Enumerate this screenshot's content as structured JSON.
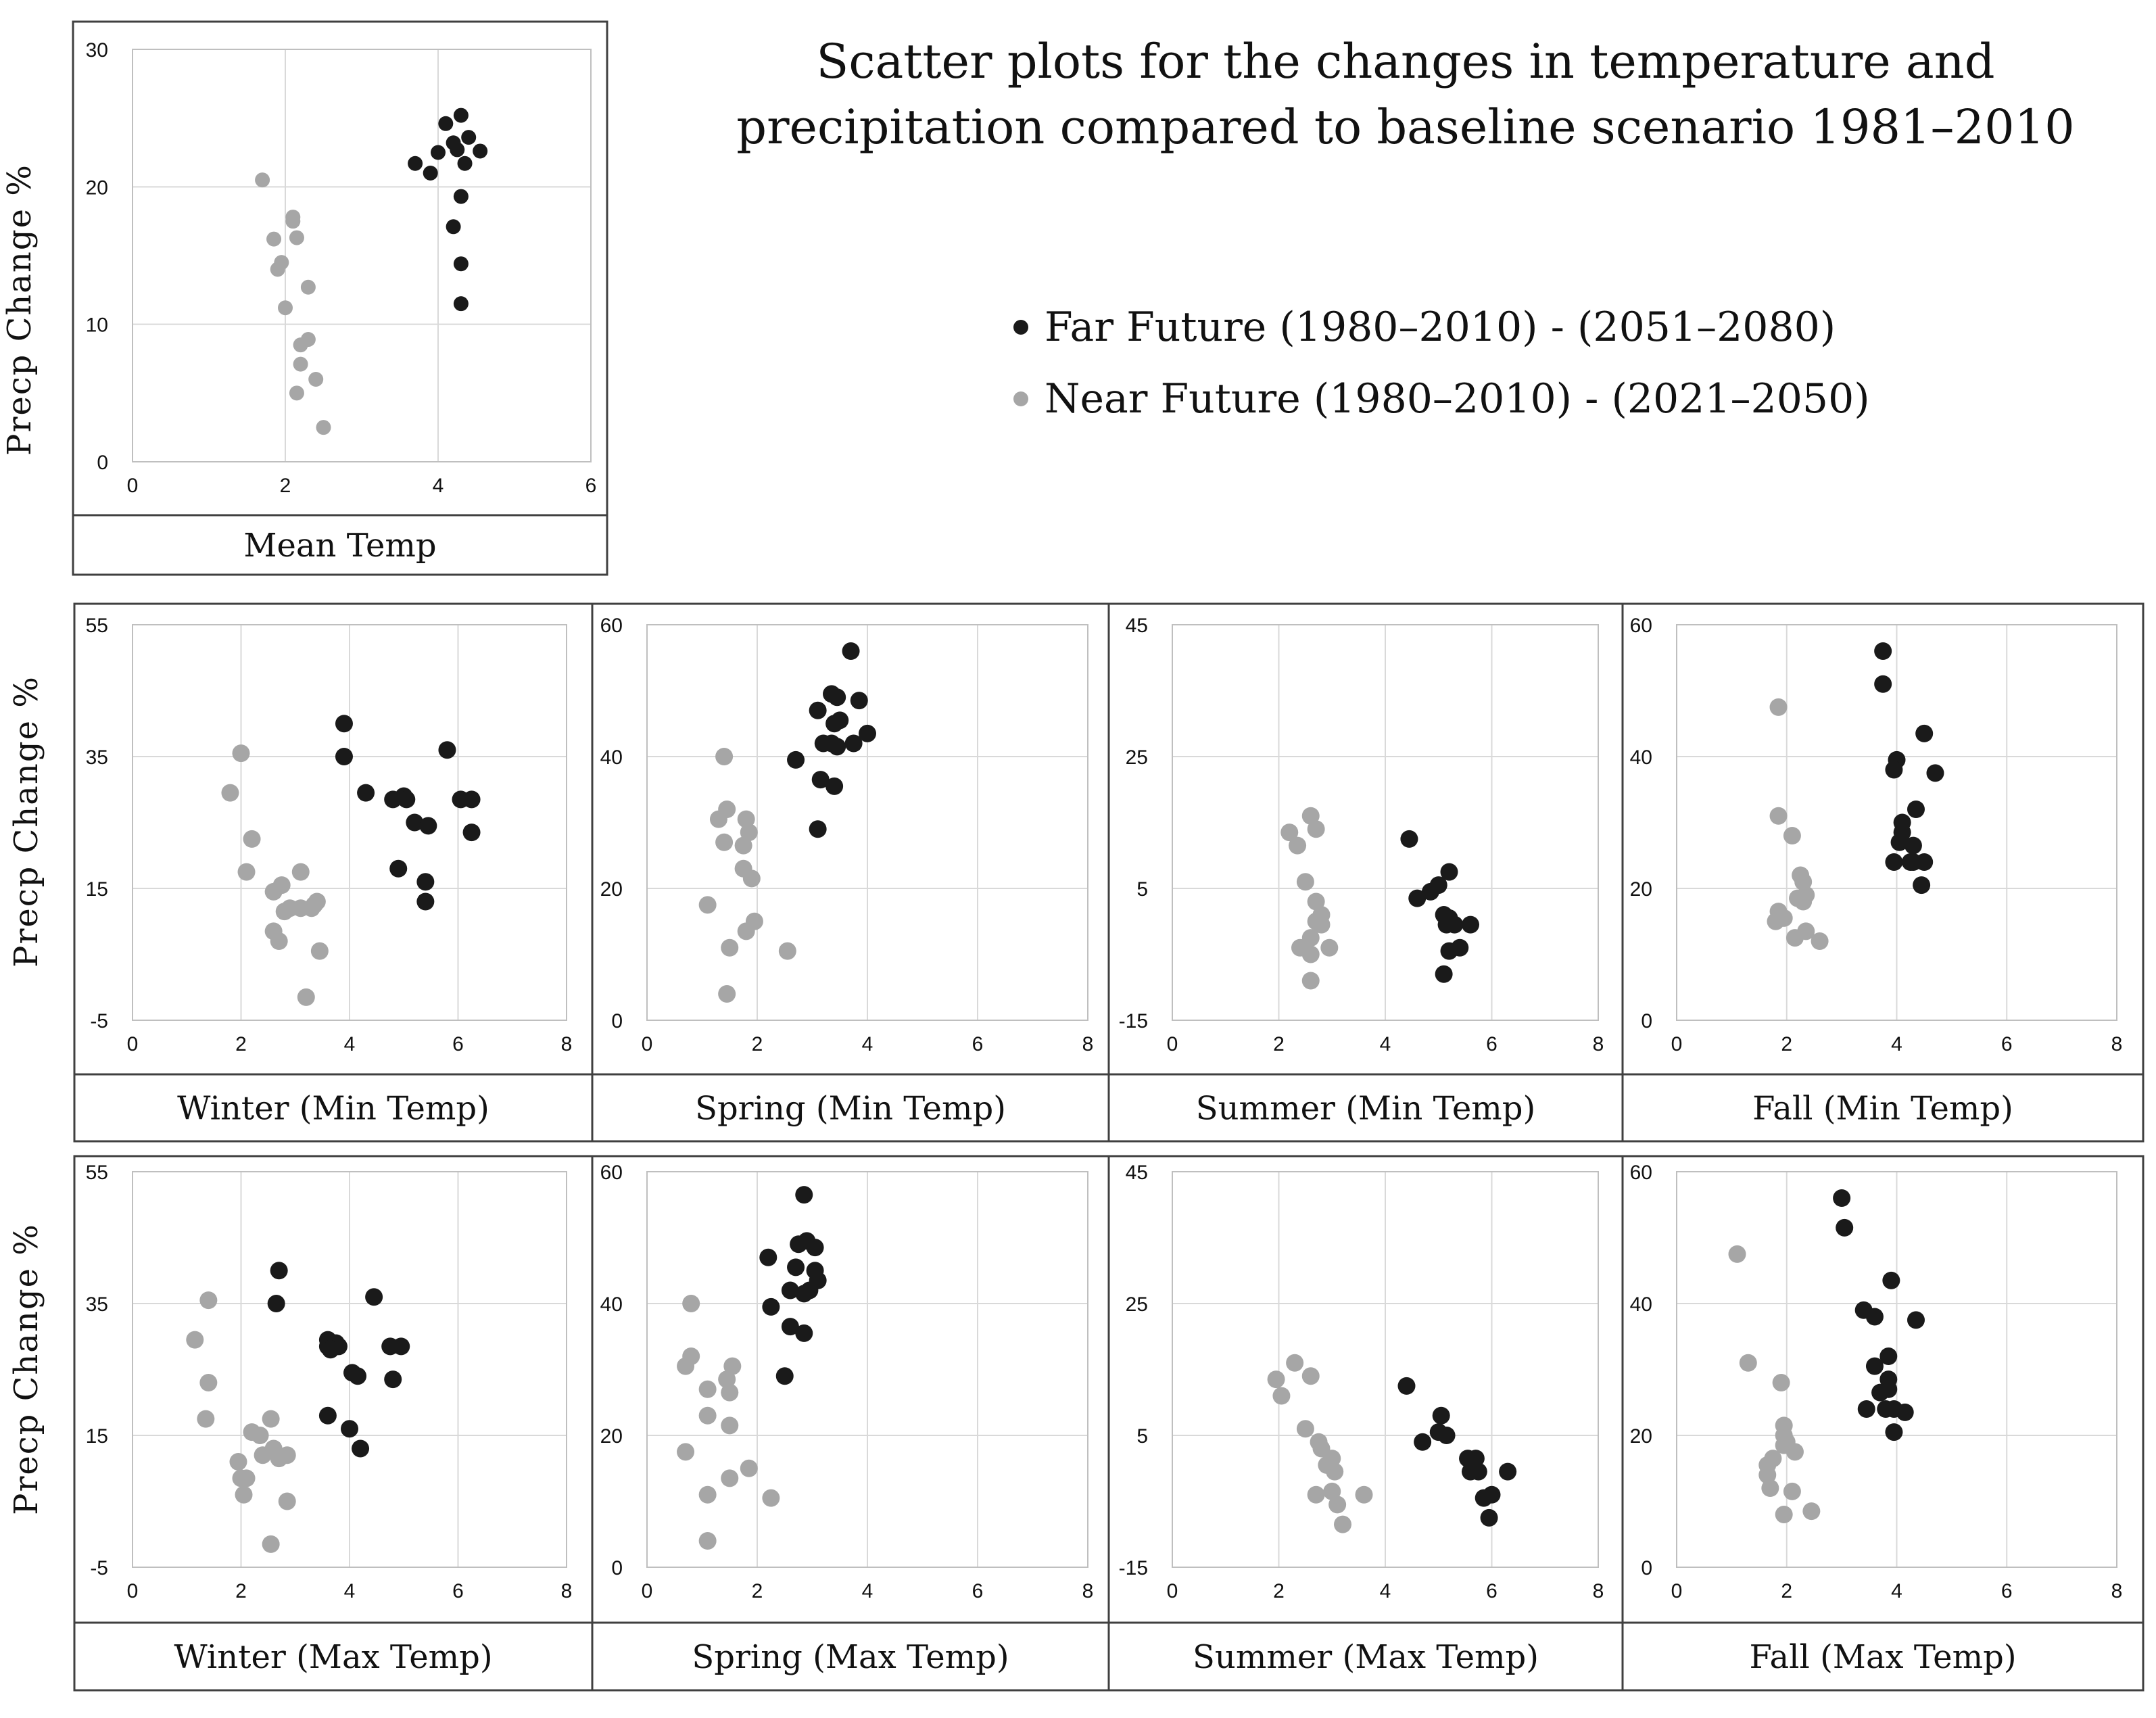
{
  "title_lines": [
    "Scatter plots for the changes in temperature and",
    "precipitation compared to baseline scenario 1981–2010"
  ],
  "legend": [
    {
      "label": "Far Future (1980–2010) - (2051–2080)",
      "color": "#1a1a1a"
    },
    {
      "label": "Near Future (1980–2010) - (2021–2050)",
      "color": "#a6a6a6"
    }
  ],
  "y_axis_title": "Precp  Change  %",
  "colors": {
    "far": "#1a1a1a",
    "near": "#a6a6a6",
    "grid": "#d9d9d9",
    "frame": "#404040"
  },
  "chart_data": [
    {
      "type": "scatter",
      "panel": "mean",
      "title": "Mean Temp",
      "xlabel": "Mean Temp",
      "ylabel": "Precp  Change  %",
      "xlim": [
        0,
        6
      ],
      "ylim": [
        0,
        30
      ],
      "xticks": [
        0,
        2,
        4,
        6
      ],
      "yticks": [
        0,
        10,
        20,
        30
      ],
      "series": [
        {
          "name": "Far Future (1980–2010) - (2051–2080)",
          "key": "far",
          "x": [
            3.7,
            3.9,
            4.0,
            4.1,
            4.2,
            4.25,
            4.3,
            4.35,
            4.4,
            4.55,
            4.3,
            4.2,
            4.3,
            4.3
          ],
          "y": [
            21.7,
            21.0,
            22.5,
            24.6,
            23.2,
            22.7,
            25.2,
            21.7,
            23.6,
            22.6,
            19.3,
            17.1,
            14.4,
            11.5
          ]
        },
        {
          "name": "Near Future (1980–2010) - (2021–2050)",
          "key": "near",
          "x": [
            1.7,
            1.85,
            1.95,
            1.9,
            2.1,
            2.1,
            2.15,
            2.0,
            2.3,
            2.2,
            2.3,
            2.2,
            2.4,
            2.15,
            2.5
          ],
          "y": [
            20.5,
            16.2,
            14.5,
            14.0,
            17.5,
            17.8,
            16.3,
            11.2,
            12.7,
            8.5,
            8.9,
            7.1,
            6.0,
            5.0,
            2.5
          ]
        }
      ]
    },
    {
      "type": "scatter",
      "panel": "winter-min",
      "xlabel": "Winter (Min Temp)",
      "xlim": [
        0,
        8
      ],
      "ylim": [
        -5,
        55
      ],
      "xticks": [
        0,
        2,
        4,
        6,
        8
      ],
      "yticks": [
        -5,
        15,
        35,
        55
      ],
      "series": [
        {
          "name": "Far Future",
          "key": "far",
          "x": [
            3.9,
            3.9,
            4.3,
            4.8,
            5.0,
            5.05,
            5.2,
            5.45,
            5.8,
            6.05,
            6.25,
            6.25,
            4.9,
            5.4,
            5.4
          ],
          "y": [
            40.0,
            35.0,
            29.5,
            28.5,
            29.0,
            28.5,
            25.0,
            24.5,
            36.0,
            28.5,
            28.5,
            23.5,
            18.0,
            16.0,
            13.0
          ]
        },
        {
          "name": "Near Future",
          "key": "near",
          "x": [
            1.8,
            2.0,
            2.1,
            2.2,
            2.6,
            2.75,
            2.9,
            2.8,
            3.1,
            3.35,
            3.4,
            3.3,
            3.1,
            2.6,
            2.7,
            3.45,
            3.2
          ],
          "y": [
            29.5,
            35.5,
            17.5,
            22.5,
            14.5,
            15.5,
            12.0,
            11.5,
            17.5,
            12.5,
            13.0,
            12.0,
            12.0,
            8.5,
            7.0,
            5.5,
            -1.5
          ]
        }
      ]
    },
    {
      "type": "scatter",
      "panel": "spring-min",
      "xlabel": "Spring (Min Temp)",
      "xlim": [
        0,
        8
      ],
      "ylim": [
        0,
        60
      ],
      "xticks": [
        0,
        2,
        4,
        6,
        8
      ],
      "yticks": [
        0,
        20,
        40,
        60
      ],
      "series": [
        {
          "name": "Far Future",
          "key": "far",
          "x": [
            3.7,
            3.35,
            3.45,
            3.85,
            3.1,
            3.5,
            3.4,
            3.45,
            3.75,
            4.0,
            3.2,
            3.35,
            2.7,
            3.15,
            3.4,
            3.1
          ],
          "y": [
            56.0,
            49.5,
            49.0,
            48.5,
            47.0,
            45.5,
            45.0,
            41.5,
            42.0,
            43.5,
            42.0,
            42.0,
            39.5,
            36.5,
            35.5,
            29.0
          ]
        },
        {
          "name": "Near Future",
          "key": "near",
          "x": [
            1.4,
            1.45,
            1.3,
            1.8,
            1.85,
            1.4,
            1.75,
            1.75,
            1.9,
            1.1,
            1.95,
            1.8,
            1.5,
            2.55,
            1.45
          ],
          "y": [
            40.0,
            32.0,
            30.5,
            30.5,
            28.5,
            27.0,
            26.5,
            23.0,
            21.5,
            17.5,
            15.0,
            13.5,
            11.0,
            10.5,
            4.0
          ]
        }
      ]
    },
    {
      "type": "scatter",
      "panel": "summer-min",
      "xlabel": "Summer (Min Temp)",
      "xlim": [
        0,
        8
      ],
      "ylim": [
        -15,
        45
      ],
      "xticks": [
        0,
        2,
        4,
        6,
        8
      ],
      "yticks": [
        -15,
        5,
        25,
        45
      ],
      "series": [
        {
          "name": "Far Future",
          "key": "far",
          "x": [
            4.45,
            5.2,
            5.0,
            4.85,
            4.6,
            5.1,
            5.2,
            5.6,
            5.3,
            5.15,
            5.4,
            5.2,
            5.1
          ],
          "y": [
            12.5,
            7.5,
            5.5,
            4.5,
            3.5,
            1.0,
            0.5,
            -0.5,
            -0.5,
            -0.5,
            -4.0,
            -4.5,
            -8.0
          ]
        },
        {
          "name": "Near Future",
          "key": "near",
          "x": [
            2.2,
            2.35,
            2.6,
            2.7,
            2.5,
            2.7,
            2.8,
            2.7,
            2.8,
            2.6,
            2.4,
            2.95,
            2.6,
            2.6
          ],
          "y": [
            13.5,
            11.5,
            16.0,
            14.0,
            6.0,
            3.0,
            1.0,
            0.0,
            -0.5,
            -2.5,
            -4.0,
            -4.0,
            -5.0,
            -9.0
          ]
        }
      ]
    },
    {
      "type": "scatter",
      "panel": "fall-min",
      "xlabel": "Fall (Min Temp)",
      "xlim": [
        0,
        8
      ],
      "ylim": [
        0,
        60
      ],
      "xticks": [
        0,
        2,
        4,
        6,
        8
      ],
      "yticks": [
        0,
        20,
        40,
        60
      ],
      "series": [
        {
          "name": "Far Future",
          "key": "far",
          "x": [
            3.75,
            3.75,
            4.0,
            3.95,
            4.5,
            4.7,
            4.35,
            4.1,
            4.1,
            4.05,
            4.3,
            4.25,
            3.95,
            4.3,
            4.5,
            4.45
          ],
          "y": [
            56.0,
            51.0,
            39.5,
            38.0,
            43.5,
            37.5,
            32.0,
            30.0,
            28.5,
            27.0,
            26.5,
            24.0,
            24.0,
            24.0,
            24.0,
            20.5
          ]
        },
        {
          "name": "Near Future",
          "key": "near",
          "x": [
            1.85,
            1.85,
            2.1,
            2.25,
            2.3,
            2.35,
            2.2,
            2.3,
            1.85,
            1.95,
            1.8,
            2.35,
            2.15,
            2.6
          ],
          "y": [
            47.5,
            31.0,
            28.0,
            22.0,
            21.0,
            19.0,
            18.5,
            18.0,
            16.5,
            15.5,
            15.0,
            13.5,
            12.5,
            12.0
          ]
        }
      ]
    },
    {
      "type": "scatter",
      "panel": "winter-max",
      "xlabel": "Winter (Max Temp)",
      "xlim": [
        0,
        8
      ],
      "ylim": [
        -5,
        55
      ],
      "xticks": [
        0,
        2,
        4,
        6,
        8
      ],
      "yticks": [
        -5,
        15,
        35,
        55
      ],
      "series": [
        {
          "name": "Far Future",
          "key": "far",
          "x": [
            2.7,
            2.65,
            3.6,
            3.6,
            3.75,
            3.8,
            3.65,
            4.05,
            4.45,
            4.15,
            4.75,
            4.95,
            4.8,
            3.6,
            4.0,
            4.2
          ],
          "y": [
            40.0,
            35.0,
            29.5,
            28.5,
            29.0,
            28.5,
            28.0,
            24.5,
            36.0,
            24.0,
            28.5,
            28.5,
            23.5,
            18.0,
            16.0,
            13.0
          ]
        },
        {
          "name": "Near Future",
          "key": "near",
          "x": [
            1.15,
            1.4,
            1.4,
            1.35,
            2.2,
            2.35,
            1.95,
            2.7,
            2.55,
            2.4,
            2.1,
            2.6,
            2.85,
            2.0,
            2.05,
            2.85,
            2.55
          ],
          "y": [
            29.5,
            35.5,
            23.0,
            17.5,
            15.5,
            15.0,
            11.0,
            11.5,
            17.5,
            12.0,
            8.5,
            13.0,
            12.0,
            8.5,
            6.0,
            5.0,
            -1.5
          ]
        }
      ]
    },
    {
      "type": "scatter",
      "panel": "spring-max",
      "xlabel": "Spring (Max Temp)",
      "xlim": [
        0,
        8
      ],
      "ylim": [
        0,
        60
      ],
      "xticks": [
        0,
        2,
        4,
        6,
        8
      ],
      "yticks": [
        0,
        20,
        40,
        60
      ],
      "series": [
        {
          "name": "Far Future",
          "key": "far",
          "x": [
            2.85,
            2.9,
            2.75,
            3.05,
            2.2,
            2.7,
            3.05,
            3.1,
            2.6,
            2.95,
            2.85,
            2.25,
            2.6,
            2.85,
            2.5
          ],
          "y": [
            56.5,
            49.5,
            49.0,
            48.5,
            47.0,
            45.5,
            45.0,
            43.5,
            42.0,
            42.0,
            41.5,
            39.5,
            36.5,
            35.5,
            29.0
          ]
        },
        {
          "name": "Near Future",
          "key": "near",
          "x": [
            0.8,
            0.8,
            0.7,
            1.55,
            1.1,
            1.45,
            1.5,
            1.1,
            1.5,
            0.7,
            1.85,
            1.5,
            1.1,
            2.25,
            1.1
          ],
          "y": [
            40.0,
            32.0,
            30.5,
            30.5,
            27.0,
            28.5,
            26.5,
            23.0,
            21.5,
            17.5,
            15.0,
            13.5,
            11.0,
            10.5,
            4.0
          ]
        }
      ]
    },
    {
      "type": "scatter",
      "panel": "summer-max",
      "xlabel": "Summer (Max Temp)",
      "xlim": [
        0,
        8
      ],
      "ylim": [
        -15,
        45
      ],
      "xticks": [
        0,
        2,
        4,
        6,
        8
      ],
      "yticks": [
        -15,
        5,
        25,
        45
      ],
      "series": [
        {
          "name": "Far Future",
          "key": "far",
          "x": [
            4.4,
            5.05,
            5.0,
            5.15,
            4.7,
            5.55,
            5.7,
            5.6,
            6.3,
            5.75,
            6.0,
            5.85,
            5.95
          ],
          "y": [
            12.5,
            8.0,
            5.5,
            5.0,
            4.0,
            1.5,
            1.5,
            -0.5,
            -0.5,
            -0.5,
            -4.0,
            -4.5,
            -7.5
          ]
        },
        {
          "name": "Near Future",
          "key": "near",
          "x": [
            1.95,
            2.05,
            2.3,
            2.6,
            2.5,
            2.75,
            2.8,
            3.0,
            2.9,
            3.05,
            3.0,
            2.7,
            3.6,
            3.1,
            3.2
          ],
          "y": [
            13.5,
            11.0,
            16.0,
            14.0,
            6.0,
            4.0,
            3.0,
            1.5,
            0.5,
            -0.5,
            -3.5,
            -4.0,
            -4.0,
            -5.5,
            -8.5
          ]
        }
      ]
    },
    {
      "type": "scatter",
      "panel": "fall-max",
      "xlabel": "Fall (Max Temp)",
      "xlim": [
        0,
        8
      ],
      "ylim": [
        0,
        60
      ],
      "xticks": [
        0,
        2,
        4,
        6,
        8
      ],
      "yticks": [
        0,
        20,
        40,
        60
      ],
      "series": [
        {
          "name": "Far Future",
          "key": "far",
          "x": [
            3.0,
            3.05,
            3.9,
            3.4,
            3.6,
            4.35,
            3.85,
            3.6,
            3.85,
            3.85,
            3.7,
            3.95,
            3.8,
            3.45,
            4.15,
            3.95
          ],
          "y": [
            56.0,
            51.5,
            43.5,
            39.0,
            38.0,
            37.5,
            32.0,
            30.5,
            28.5,
            27.0,
            26.5,
            24.0,
            24.0,
            24.0,
            23.5,
            20.5
          ]
        },
        {
          "name": "Near Future",
          "key": "near",
          "x": [
            1.1,
            1.3,
            1.9,
            1.95,
            1.95,
            2.0,
            1.95,
            2.15,
            1.75,
            1.65,
            1.65,
            1.7,
            2.1,
            1.95,
            2.45
          ],
          "y": [
            47.5,
            31.0,
            28.0,
            21.5,
            20.0,
            19.0,
            18.5,
            17.5,
            16.5,
            15.5,
            14.0,
            12.0,
            11.5,
            8.0,
            8.5
          ]
        }
      ]
    }
  ]
}
